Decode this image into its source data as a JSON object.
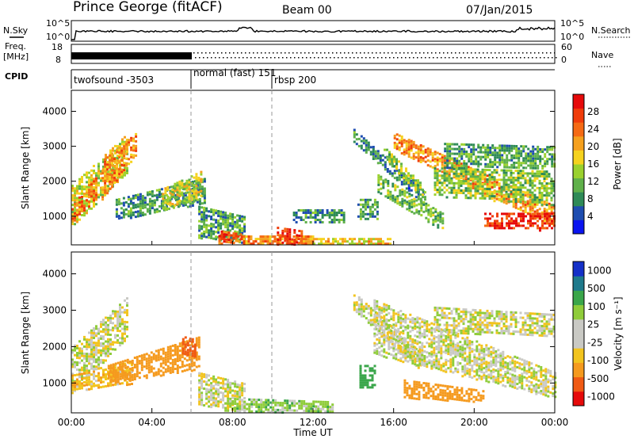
{
  "header": {
    "station": "Prince George (fitACF)",
    "beam": "Beam 00",
    "date": "07/Jan/2015"
  },
  "strips": {
    "nsky_label": "N.Sky",
    "nsky_ticks": [
      "10^5",
      "10^0"
    ],
    "nsearch_label": "N.Search",
    "nsearch_ticks": [
      "10^5",
      "10^0"
    ],
    "freq_label_1": "Freq.",
    "freq_label_2": "[MHz]",
    "freq_ticks": [
      "18",
      "8"
    ],
    "nave_label": "Nave",
    "nave_ticks": [
      "60",
      "0"
    ],
    "cpid_label": "CPID",
    "cpid_modes": [
      {
        "label": "twofsound -3503",
        "start_hour": 0
      },
      {
        "label": "normal (fast) 151",
        "start_hour": 6
      },
      {
        "label": "rbsp 200",
        "start_hour": 10
      }
    ]
  },
  "colors": {
    "power": [
      "#0a14f0",
      "#1e4db0",
      "#2e8a57",
      "#5fb04a",
      "#9ad12e",
      "#f5d21e",
      "#f5a01e",
      "#f56a14",
      "#f03c0a",
      "#e60a0a"
    ],
    "velocity": [
      "#e60a0a",
      "#f05a14",
      "#f59a1e",
      "#f2c41e",
      "#c9c9c4",
      "#c9c9c4",
      "#8fcc3a",
      "#3aa64a",
      "#1f7a8c",
      "#1430c8"
    ]
  },
  "chart_data": [
    {
      "type": "heatmap",
      "panel": "power",
      "xlabel": "Time UT",
      "ylabel": "Slant Range [km]",
      "xlim": [
        0,
        24
      ],
      "ylim": [
        180,
        4600
      ],
      "x_ticks": [
        "00:00",
        "04:00",
        "08:00",
        "12:00",
        "16:00",
        "20:00",
        "00:00"
      ],
      "y_ticks": [
        1000,
        2000,
        3000,
        4000
      ],
      "colorbar_label": "Power [dB]",
      "colorbar_ticks": [
        "28",
        "24",
        "20",
        "16",
        "12",
        "8",
        "4"
      ],
      "colorbar_range": [
        0,
        32
      ],
      "regions": [
        {
          "t0": 0.0,
          "t1": 2.8,
          "r0a": 700,
          "r1a": 1900,
          "r0b": 2300,
          "r1b": 3400,
          "p": 16
        },
        {
          "t0": 0.0,
          "t1": 1.2,
          "r0a": 800,
          "r1a": 1300,
          "r0b": 1500,
          "r1b": 2200,
          "p": 24
        },
        {
          "t0": 1.5,
          "t1": 3.2,
          "r0a": 1500,
          "r1a": 2600,
          "r0b": 2800,
          "r1b": 3400,
          "p": 22
        },
        {
          "t0": 2.2,
          "t1": 6.6,
          "r0a": 900,
          "r1a": 1500,
          "r0b": 1400,
          "r1b": 2100,
          "p": 9
        },
        {
          "t0": 4.5,
          "t1": 6.4,
          "r0a": 1200,
          "r1a": 1800,
          "r0b": 1500,
          "r1b": 2300,
          "p": 16
        },
        {
          "t0": 6.3,
          "t1": 8.6,
          "r0a": 400,
          "r1a": 1300,
          "r0b": 250,
          "r1b": 1000,
          "p": 10
        },
        {
          "t0": 7.3,
          "t1": 8.5,
          "r0a": 250,
          "r1a": 600,
          "r0b": 250,
          "r1b": 500,
          "p": 26
        },
        {
          "t0": 8.4,
          "t1": 12.0,
          "r0a": 220,
          "r1a": 450,
          "r0b": 220,
          "r1b": 450,
          "p": 22
        },
        {
          "t0": 10.2,
          "t1": 11.4,
          "r0a": 220,
          "r1a": 700,
          "r0b": 220,
          "r1b": 600,
          "p": 28
        },
        {
          "t0": 11.0,
          "t1": 13.5,
          "r0a": 800,
          "r1a": 1200,
          "r0b": 800,
          "r1b": 1200,
          "p": 9
        },
        {
          "t0": 12.0,
          "t1": 15.8,
          "r0a": 220,
          "r1a": 380,
          "r0b": 220,
          "r1b": 380,
          "p": 18
        },
        {
          "t0": 14.2,
          "t1": 15.2,
          "r0a": 900,
          "r1a": 1500,
          "r0b": 900,
          "r1b": 1500,
          "p": 10
        },
        {
          "t0": 14.0,
          "t1": 17.5,
          "r0a": 3100,
          "r1a": 3500,
          "r0b": 1300,
          "r1b": 1700,
          "p": 8
        },
        {
          "t0": 15.5,
          "t1": 17.6,
          "r0a": 2600,
          "r1a": 3000,
          "r0b": 1400,
          "r1b": 1800,
          "p": 14
        },
        {
          "t0": 15.2,
          "t1": 18.4,
          "r0a": 1700,
          "r1a": 2200,
          "r0b": 600,
          "r1b": 1100,
          "p": 12
        },
        {
          "t0": 16.0,
          "t1": 24.0,
          "r0a": 2900,
          "r1a": 3400,
          "r0b": 700,
          "r1b": 1300,
          "p": 22
        },
        {
          "t0": 18.0,
          "t1": 24.0,
          "r0a": 1600,
          "r1a": 2400,
          "r0b": 1300,
          "r1b": 2300,
          "p": 13
        },
        {
          "t0": 20.5,
          "t1": 24.0,
          "r0a": 700,
          "r1a": 1100,
          "r0b": 600,
          "r1b": 1100,
          "p": 29
        },
        {
          "t0": 18.5,
          "t1": 24.0,
          "r0a": 2400,
          "r1a": 3100,
          "r0b": 2400,
          "r1b": 3000,
          "p": 10
        }
      ]
    },
    {
      "type": "heatmap",
      "panel": "velocity",
      "xlabel": "Time UT",
      "ylabel": "Slant Range [km]",
      "xlim": [
        0,
        24
      ],
      "ylim": [
        180,
        4600
      ],
      "x_ticks": [
        "00:00",
        "04:00",
        "08:00",
        "12:00",
        "16:00",
        "20:00",
        "00:00"
      ],
      "y_ticks": [
        1000,
        2000,
        3000,
        4000
      ],
      "colorbar_label": "Velocity [m s⁻¹]",
      "colorbar_ticks": [
        "1000",
        "500",
        "100",
        "25",
        "-25",
        "-100",
        "-500",
        "-1000"
      ],
      "regions": [
        {
          "t0": 0.0,
          "t1": 2.8,
          "r0a": 700,
          "r1a": 2000,
          "r0b": 2300,
          "r1b": 3400,
          "v": 0
        },
        {
          "t0": 0.0,
          "t1": 3.0,
          "r0a": 800,
          "r1a": 1300,
          "r0b": 1000,
          "r1b": 1600,
          "v": -80
        },
        {
          "t0": 1.8,
          "t1": 6.4,
          "r0a": 1000,
          "r1a": 1500,
          "r0b": 1400,
          "r1b": 2300,
          "v": -300
        },
        {
          "t0": 5.5,
          "t1": 6.2,
          "r0a": 1800,
          "r1a": 2300,
          "r0b": 1700,
          "r1b": 2200,
          "v": -800
        },
        {
          "t0": 6.3,
          "t1": 8.6,
          "r0a": 400,
          "r1a": 1300,
          "r0b": 250,
          "r1b": 1000,
          "v": 0
        },
        {
          "t0": 7.6,
          "t1": 13.0,
          "r0a": 220,
          "r1a": 600,
          "r0b": 220,
          "r1b": 500,
          "v": 60
        },
        {
          "t0": 14.3,
          "t1": 15.1,
          "r0a": 900,
          "r1a": 1500,
          "r0b": 900,
          "r1b": 1500,
          "v": 200
        },
        {
          "t0": 14.0,
          "t1": 17.4,
          "r0a": 3000,
          "r1a": 3500,
          "r0b": 1300,
          "r1b": 1800,
          "v": 0
        },
        {
          "t0": 15.0,
          "t1": 24.0,
          "r0a": 1800,
          "r1a": 3300,
          "r0b": 600,
          "r1b": 1300,
          "v": 0
        },
        {
          "t0": 16.5,
          "t1": 20.5,
          "r0a": 600,
          "r1a": 1100,
          "r0b": 500,
          "r1b": 800,
          "v": -200
        },
        {
          "t0": 18.0,
          "t1": 24.0,
          "r0a": 2400,
          "r1a": 3100,
          "r0b": 2300,
          "r1b": 2900,
          "v": 0
        }
      ]
    }
  ]
}
